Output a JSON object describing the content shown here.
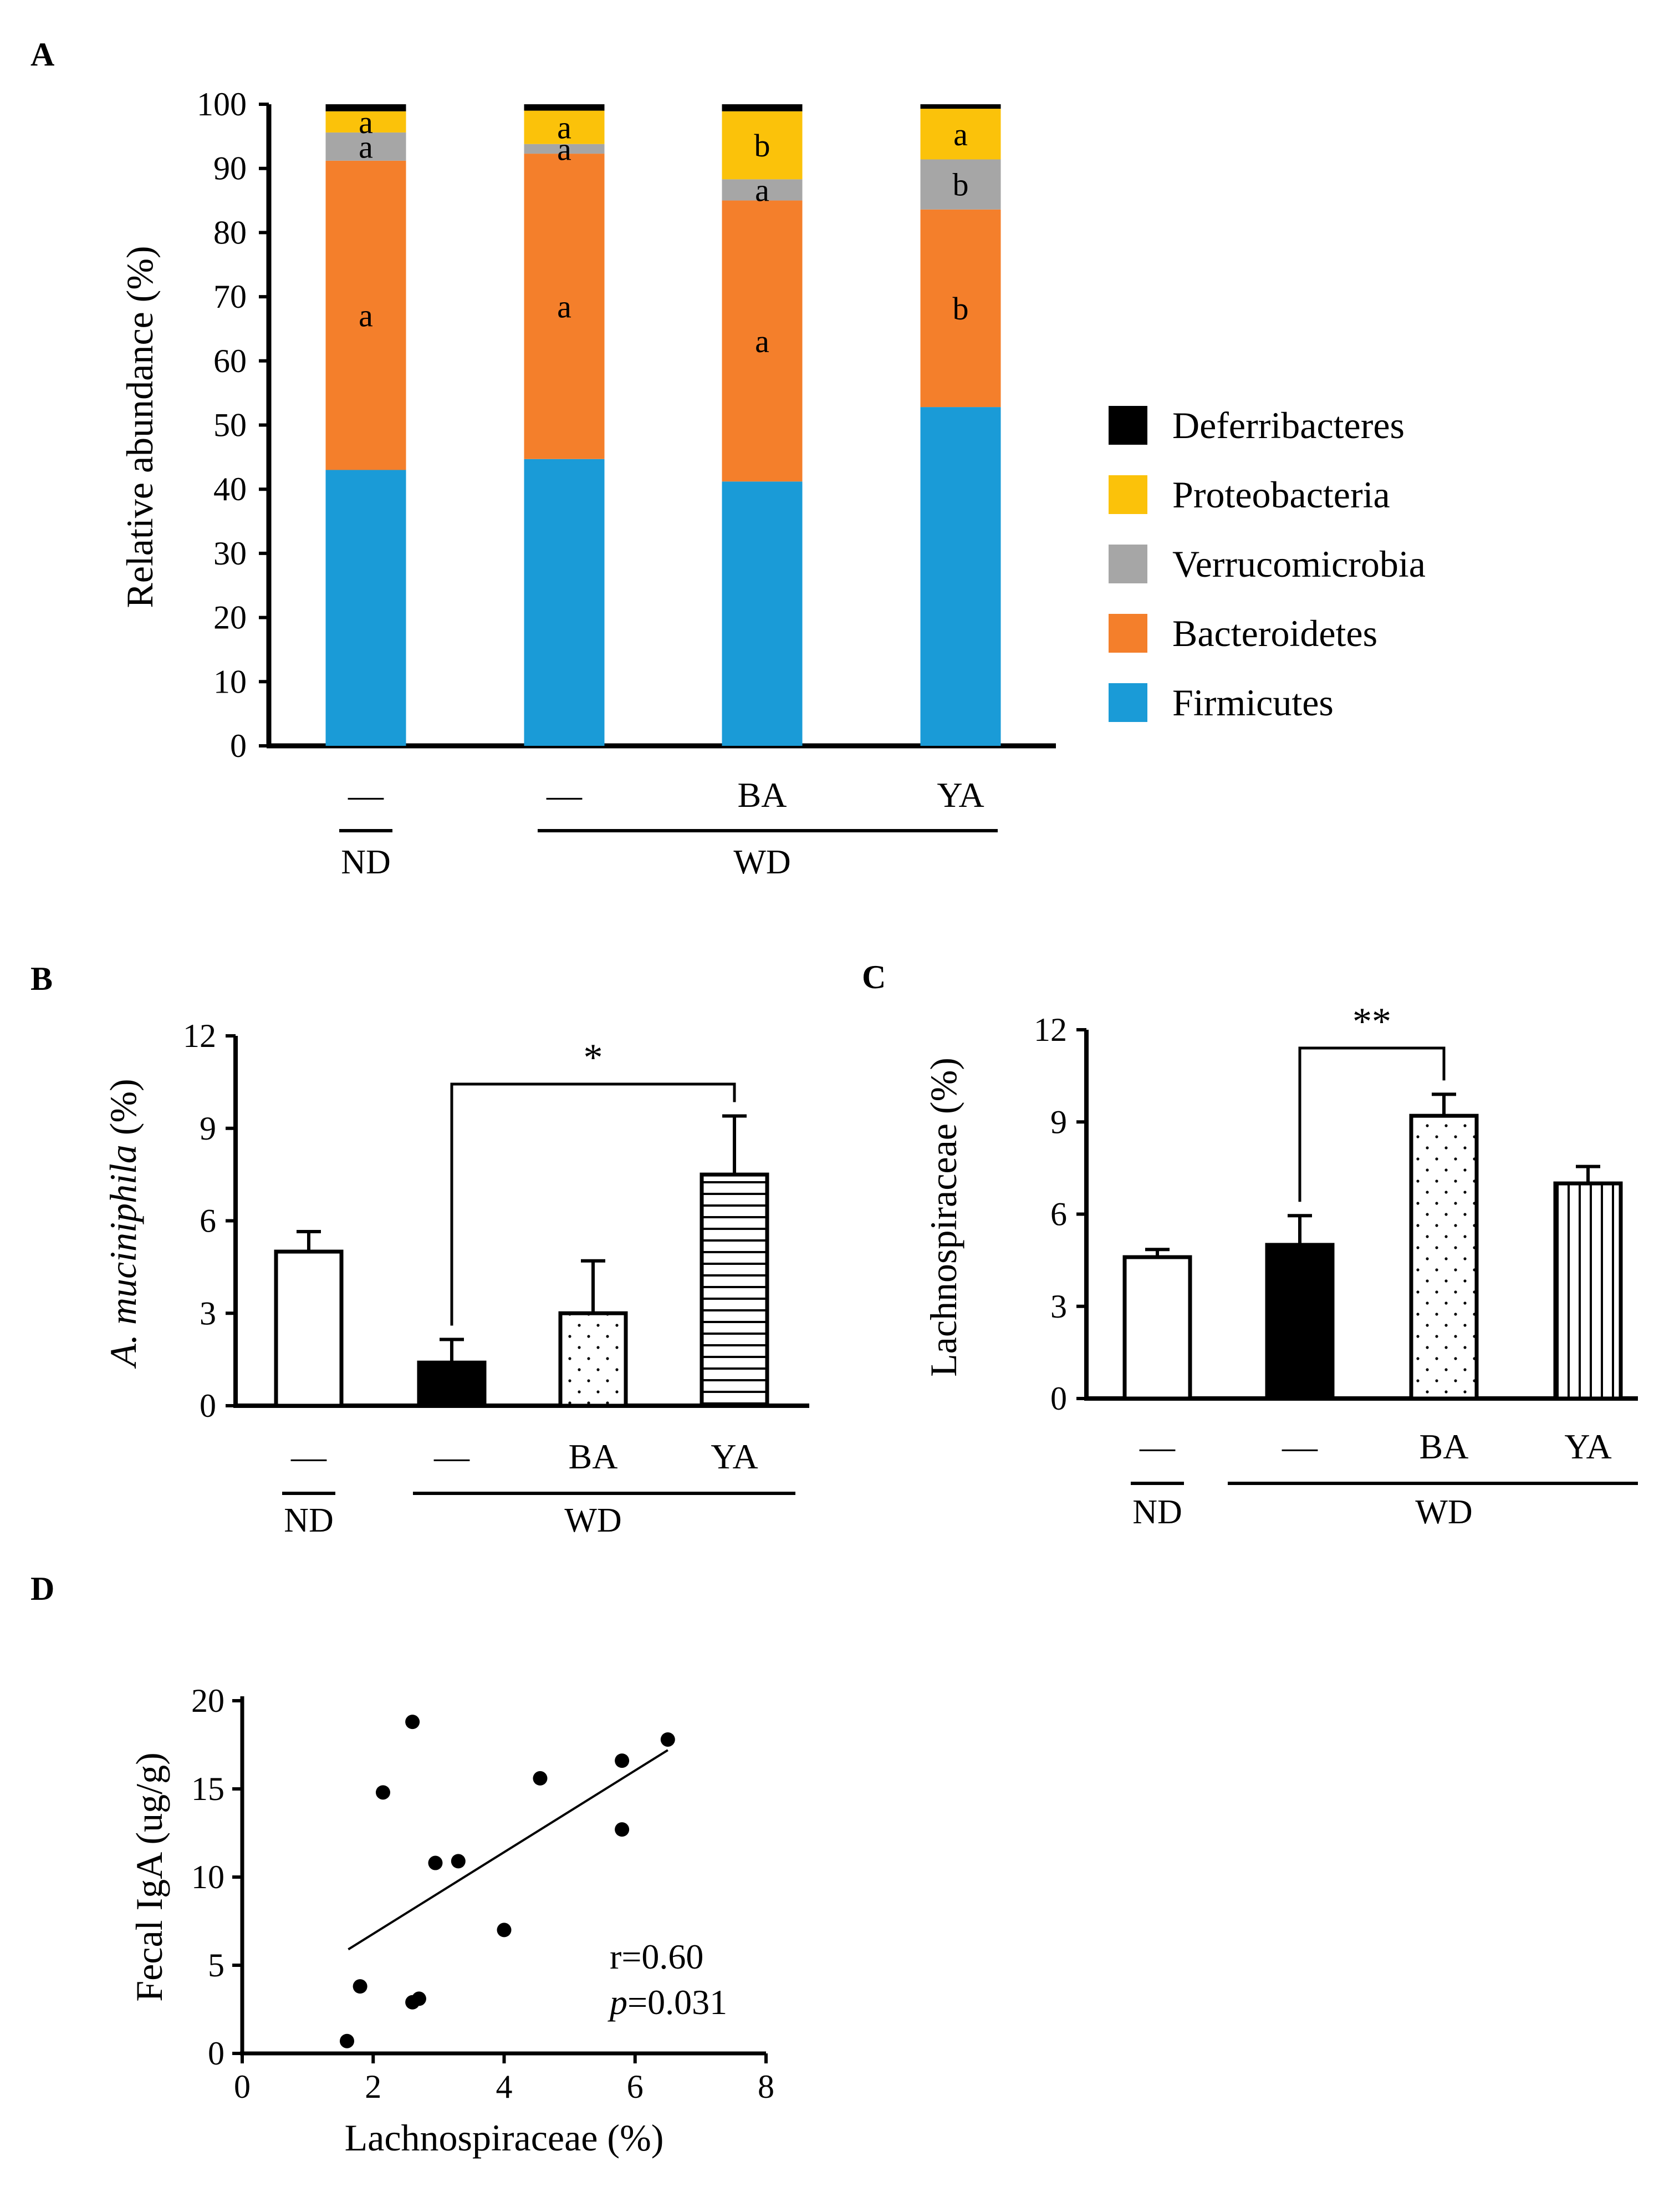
{
  "chart_data": [
    {
      "panel": "A",
      "type": "stacked_bar",
      "ylabel": "Relative abundance (%)",
      "ylim": [
        0,
        100
      ],
      "yticks": [
        0,
        10,
        20,
        30,
        40,
        50,
        60,
        70,
        80,
        90,
        100
      ],
      "categories": [
        "—",
        "—",
        "BA",
        "YA"
      ],
      "groups": [
        {
          "label": "ND",
          "members": [
            0
          ]
        },
        {
          "label": "WD",
          "members": [
            1,
            2,
            3
          ]
        }
      ],
      "series": [
        {
          "name": "Firmicutes",
          "color": "#1a9bd7",
          "values": [
            43.0,
            44.7,
            41.2,
            52.8
          ],
          "letters": [
            "",
            "",
            "",
            ""
          ]
        },
        {
          "name": "Bacteroidetes",
          "color": "#f47f2b",
          "values": [
            48.2,
            47.6,
            43.8,
            30.8
          ],
          "letters": [
            "a",
            "a",
            "a",
            "b"
          ]
        },
        {
          "name": "Verrucomicrobia",
          "color": "#a6a6a6",
          "values": [
            4.4,
            1.5,
            3.3,
            7.8
          ],
          "letters": [
            "a",
            "a",
            "a",
            "b"
          ]
        },
        {
          "name": "Proteobacteria",
          "color": "#fbc20a",
          "values": [
            3.3,
            5.2,
            10.6,
            7.9
          ],
          "letters": [
            "a",
            "a",
            "b",
            "a"
          ]
        },
        {
          "name": "Deferribacteres",
          "color": "#000000",
          "values": [
            1.1,
            1.0,
            1.1,
            0.7
          ],
          "letters": [
            "",
            "",
            "",
            ""
          ]
        }
      ]
    },
    {
      "panel": "B",
      "type": "bar",
      "ylabel_italic": "A. muciniphila",
      "ylabel_rest": " (%)",
      "ylim": [
        0,
        12
      ],
      "yticks": [
        0,
        3,
        6,
        9,
        12
      ],
      "categories": [
        "—",
        "—",
        "BA",
        "YA"
      ],
      "groups": [
        {
          "label": "ND",
          "members": [
            0
          ]
        },
        {
          "label": "WD",
          "members": [
            1,
            2,
            3
          ]
        }
      ],
      "values": [
        5.0,
        1.4,
        3.0,
        7.5
      ],
      "errors": [
        0.65,
        0.75,
        1.7,
        1.9
      ],
      "significance": [
        {
          "from": 1,
          "to": 3,
          "label": "*"
        }
      ]
    },
    {
      "panel": "C",
      "type": "bar",
      "ylabel": "Lachnospiraceae  (%)",
      "ylim": [
        0,
        12
      ],
      "yticks": [
        0,
        3,
        6,
        9,
        12
      ],
      "categories": [
        "—",
        "—",
        "BA",
        "YA"
      ],
      "groups": [
        {
          "label": "ND",
          "members": [
            0
          ]
        },
        {
          "label": "WD",
          "members": [
            1,
            2,
            3
          ]
        }
      ],
      "values": [
        4.6,
        5.0,
        9.2,
        7.0
      ],
      "errors": [
        0.25,
        0.95,
        0.7,
        0.55
      ],
      "significance": [
        {
          "from": 1,
          "to": 2,
          "label": "**"
        }
      ]
    },
    {
      "panel": "D",
      "type": "scatter",
      "xlabel": "Lachnospiraceae (%)",
      "ylabel": "Fecal IgA (ug/g)",
      "xlim": [
        0,
        8
      ],
      "ylim": [
        0,
        20
      ],
      "xticks": [
        0,
        2,
        4,
        6,
        8
      ],
      "yticks": [
        0,
        5,
        10,
        15,
        20
      ],
      "points": [
        {
          "x": 1.6,
          "y": 0.7
        },
        {
          "x": 1.8,
          "y": 3.8
        },
        {
          "x": 2.6,
          "y": 2.9
        },
        {
          "x": 2.7,
          "y": 3.1
        },
        {
          "x": 2.15,
          "y": 14.8
        },
        {
          "x": 2.6,
          "y": 18.8
        },
        {
          "x": 2.95,
          "y": 10.8
        },
        {
          "x": 3.3,
          "y": 10.9
        },
        {
          "x": 4.0,
          "y": 7.0
        },
        {
          "x": 4.55,
          "y": 15.6
        },
        {
          "x": 5.8,
          "y": 16.6
        },
        {
          "x": 5.8,
          "y": 12.7
        },
        {
          "x": 6.5,
          "y": 17.8
        }
      ],
      "fit_line": [
        {
          "x": 1.62,
          "y": 5.9
        },
        {
          "x": 6.5,
          "y": 17.2
        }
      ],
      "r_label": "r=0.60",
      "p_italic": "p",
      "p_value": "=0.031"
    }
  ],
  "panels": {
    "a": "A",
    "b": "B",
    "c": "C",
    "d": "D"
  }
}
